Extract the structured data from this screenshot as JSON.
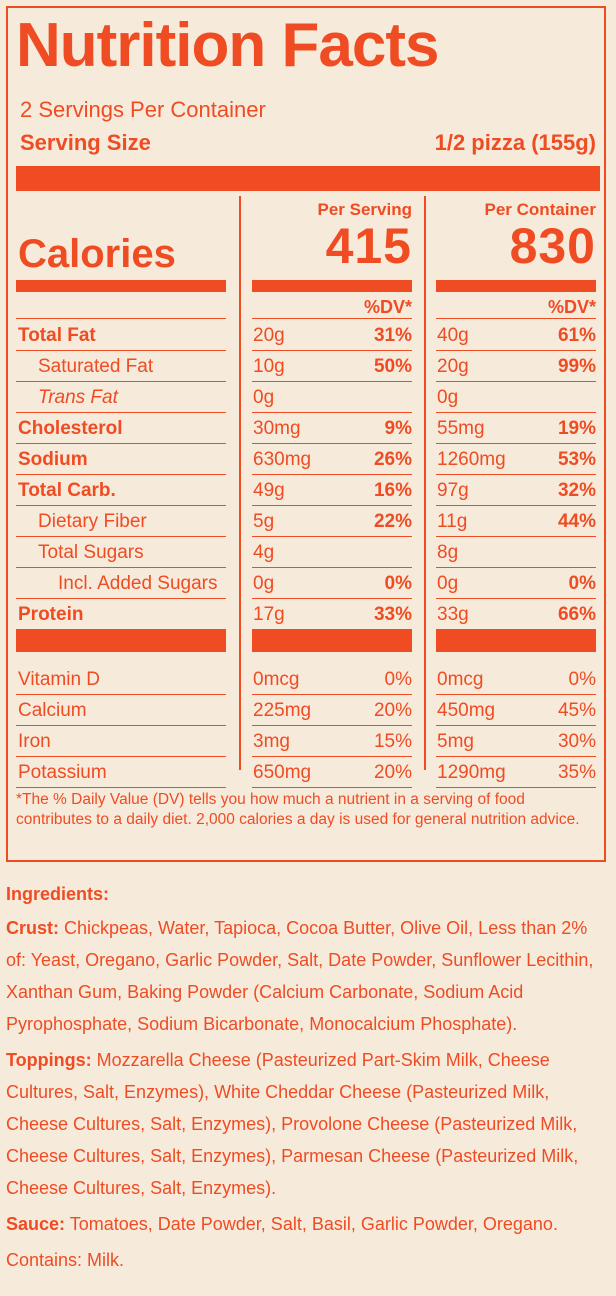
{
  "label": {
    "title": "Nutrition Facts",
    "servings_per_container": "2 Servings Per Container",
    "serving_size_label": "Serving Size",
    "serving_size_value": "1/2 pizza (155g)",
    "calories_label": "Calories",
    "per_serving_label": "Per Serving",
    "per_container_label": "Per Container",
    "calories_per_serving": "415",
    "calories_per_container": "830",
    "dv_header": "%DV*",
    "nutrients": [
      {
        "name": "Total Fat",
        "style": "bold",
        "indent": 0,
        "s_amt": "20g",
        "s_dv": "31%",
        "c_amt": "40g",
        "c_dv": "61%"
      },
      {
        "name": "Saturated Fat",
        "style": "normal",
        "indent": 1,
        "s_amt": "10g",
        "s_dv": "50%",
        "c_amt": "20g",
        "c_dv": "99%"
      },
      {
        "name": "Trans Fat",
        "style": "italic",
        "indent": 1,
        "s_amt": "0g",
        "s_dv": "",
        "c_amt": "0g",
        "c_dv": ""
      },
      {
        "name": "Cholesterol",
        "style": "bold",
        "indent": 0,
        "s_amt": "30mg",
        "s_dv": "9%",
        "c_amt": "55mg",
        "c_dv": "19%"
      },
      {
        "name": "Sodium",
        "style": "bold",
        "indent": 0,
        "s_amt": "630mg",
        "s_dv": "26%",
        "c_amt": "1260mg",
        "c_dv": "53%"
      },
      {
        "name": "Total Carb.",
        "style": "bold",
        "indent": 0,
        "s_amt": "49g",
        "s_dv": "16%",
        "c_amt": "97g",
        "c_dv": "32%"
      },
      {
        "name": "Dietary Fiber",
        "style": "normal",
        "indent": 1,
        "s_amt": "5g",
        "s_dv": "22%",
        "c_amt": "11g",
        "c_dv": "44%"
      },
      {
        "name": "Total Sugars",
        "style": "normal",
        "indent": 1,
        "s_amt": "4g",
        "s_dv": "",
        "c_amt": "8g",
        "c_dv": ""
      },
      {
        "name": "Incl. Added Sugars",
        "style": "normal",
        "indent": 2,
        "s_amt": "0g",
        "s_dv": "0%",
        "c_amt": "0g",
        "c_dv": "0%"
      },
      {
        "name": "Protein",
        "style": "bold",
        "indent": 0,
        "s_amt": "17g",
        "s_dv": "33%",
        "c_amt": "33g",
        "c_dv": "66%"
      }
    ],
    "vitamins": [
      {
        "name": "Vitamin D",
        "s_amt": "0mcg",
        "s_dv": "0%",
        "c_amt": "0mcg",
        "c_dv": "0%"
      },
      {
        "name": "Calcium",
        "s_amt": "225mg",
        "s_dv": "20%",
        "c_amt": "450mg",
        "c_dv": "45%"
      },
      {
        "name": "Iron",
        "s_amt": "3mg",
        "s_dv": "15%",
        "c_amt": "5mg",
        "c_dv": "30%"
      },
      {
        "name": "Potassium",
        "s_amt": "650mg",
        "s_dv": "20%",
        "c_amt": "1290mg",
        "c_dv": "35%"
      }
    ],
    "footnote": "*The % Daily Value (DV) tells you how much a nutrient in a serving of food contributes to a daily diet. 2,000 calories a day is used for general nutrition advice."
  },
  "ingredients": {
    "title": "Ingredients:",
    "crust_label": "Crust:",
    "crust_text": " Chickpeas, Water, Tapioca, Cocoa Butter, Olive Oil, Less than 2% of: Yeast, Oregano, Garlic Powder, Salt, Date Powder, Sunflower Lecithin, Xanthan Gum, Baking Powder (Calcium Carbonate, Sodium Acid Pyrophosphate, Sodium Bicarbonate, Monocalcium Phosphate).",
    "toppings_label": "Toppings:",
    "toppings_text": " Mozzarella Cheese (Pasteurized Part-Skim Milk, Cheese Cultures, Salt, Enzymes), White Cheddar Cheese (Pasteurized Milk, Cheese Cultures, Salt, Enzymes), Provolone Cheese (Pasteurized Milk, Cheese Cultures, Salt, Enzymes), Parmesan Cheese (Pasteurized Milk, Cheese Cultures, Salt, Enzymes).",
    "sauce_label": "Sauce:",
    "sauce_text": " Tomatoes, Date Powder, Salt, Basil, Garlic Powder, Oregano.",
    "contains": "Contains: Milk."
  },
  "colors": {
    "accent": "#ef4c23",
    "background": "#f6eadb"
  }
}
